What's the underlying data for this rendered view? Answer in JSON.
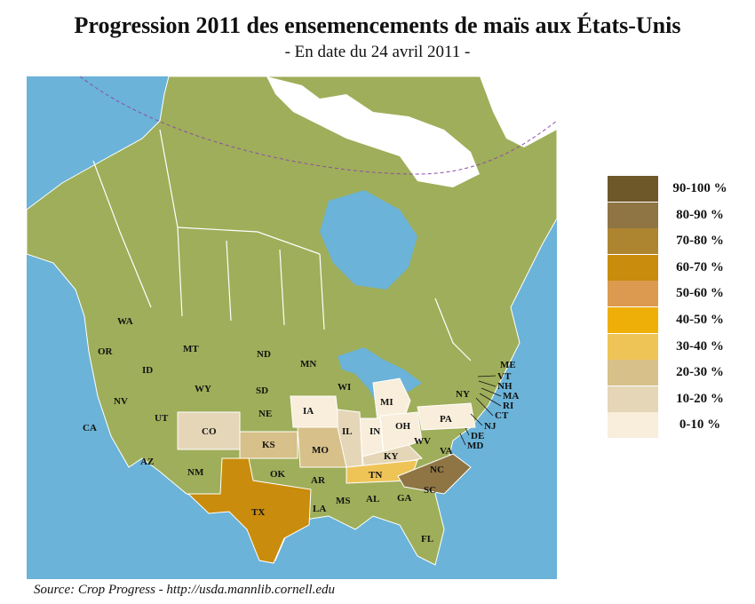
{
  "title": "Progression 2011 des ensemencements de maïs aux États-Unis",
  "subtitle": "- En date du 24 avril 2011 -",
  "source": "Source: Crop Progress - http://usda.mannlib.cornell.edu",
  "colors": {
    "ocean": "#6bb3d8",
    "land": "#9fae5a",
    "border": "#ffffff",
    "ice": "#ffffff"
  },
  "legend": [
    {
      "label": "90-100 %",
      "color": "#6e582a"
    },
    {
      "label": "80-90 %",
      "color": "#8e7543"
    },
    {
      "label": "70-80 %",
      "color": "#ad8531"
    },
    {
      "label": "60-70 %",
      "color": "#c98c0c"
    },
    {
      "label": "50-60 %",
      "color": "#dc9a51"
    },
    {
      "label": "40-50 %",
      "color": "#eeaf08"
    },
    {
      "label": "30-40 %",
      "color": "#efc457"
    },
    {
      "label": "20-30 %",
      "color": "#d7c089"
    },
    {
      "label": "10-20 %",
      "color": "#e5d6b8"
    },
    {
      "label": "0-10 %",
      "color": "#f9eedb"
    }
  ],
  "states": [
    {
      "code": "WA",
      "category": null
    },
    {
      "code": "OR",
      "category": null
    },
    {
      "code": "ID",
      "category": null
    },
    {
      "code": "MT",
      "category": null
    },
    {
      "code": "ND",
      "category": null
    },
    {
      "code": "MN",
      "category": null
    },
    {
      "code": "WY",
      "category": null
    },
    {
      "code": "SD",
      "category": null
    },
    {
      "code": "WI",
      "category": null
    },
    {
      "code": "MI",
      "category": "0-10 %"
    },
    {
      "code": "NY",
      "category": null
    },
    {
      "code": "ME",
      "category": null
    },
    {
      "code": "VT",
      "category": null
    },
    {
      "code": "NH",
      "category": null
    },
    {
      "code": "MA",
      "category": null
    },
    {
      "code": "RI",
      "category": null
    },
    {
      "code": "CT",
      "category": null
    },
    {
      "code": "NV",
      "category": null
    },
    {
      "code": "CA",
      "category": null
    },
    {
      "code": "UT",
      "category": null
    },
    {
      "code": "NE",
      "category": null
    },
    {
      "code": "IA",
      "category": "0-10 %"
    },
    {
      "code": "CO",
      "category": "10-20 %"
    },
    {
      "code": "KS",
      "category": "20-30 %"
    },
    {
      "code": "IL",
      "category": "10-20 %"
    },
    {
      "code": "IN",
      "category": "0-10 %"
    },
    {
      "code": "OH",
      "category": "0-10 %"
    },
    {
      "code": "PA",
      "category": "0-10 %"
    },
    {
      "code": "NJ",
      "category": null
    },
    {
      "code": "DE",
      "category": null
    },
    {
      "code": "MD",
      "category": null
    },
    {
      "code": "AZ",
      "category": null
    },
    {
      "code": "MO",
      "category": "20-30 %"
    },
    {
      "code": "KY",
      "category": "10-20 %"
    },
    {
      "code": "WV",
      "category": null
    },
    {
      "code": "VA",
      "category": null
    },
    {
      "code": "NM",
      "category": null
    },
    {
      "code": "OK",
      "category": null
    },
    {
      "code": "TN",
      "category": "30-40 %"
    },
    {
      "code": "NC",
      "category": "80-90 %"
    },
    {
      "code": "AR",
      "category": null
    },
    {
      "code": "TX",
      "category": "60-70 %"
    },
    {
      "code": "LA",
      "category": null
    },
    {
      "code": "MS",
      "category": null
    },
    {
      "code": "AL",
      "category": null
    },
    {
      "code": "GA",
      "category": null
    },
    {
      "code": "SC",
      "category": null
    },
    {
      "code": "FL",
      "category": null
    }
  ]
}
